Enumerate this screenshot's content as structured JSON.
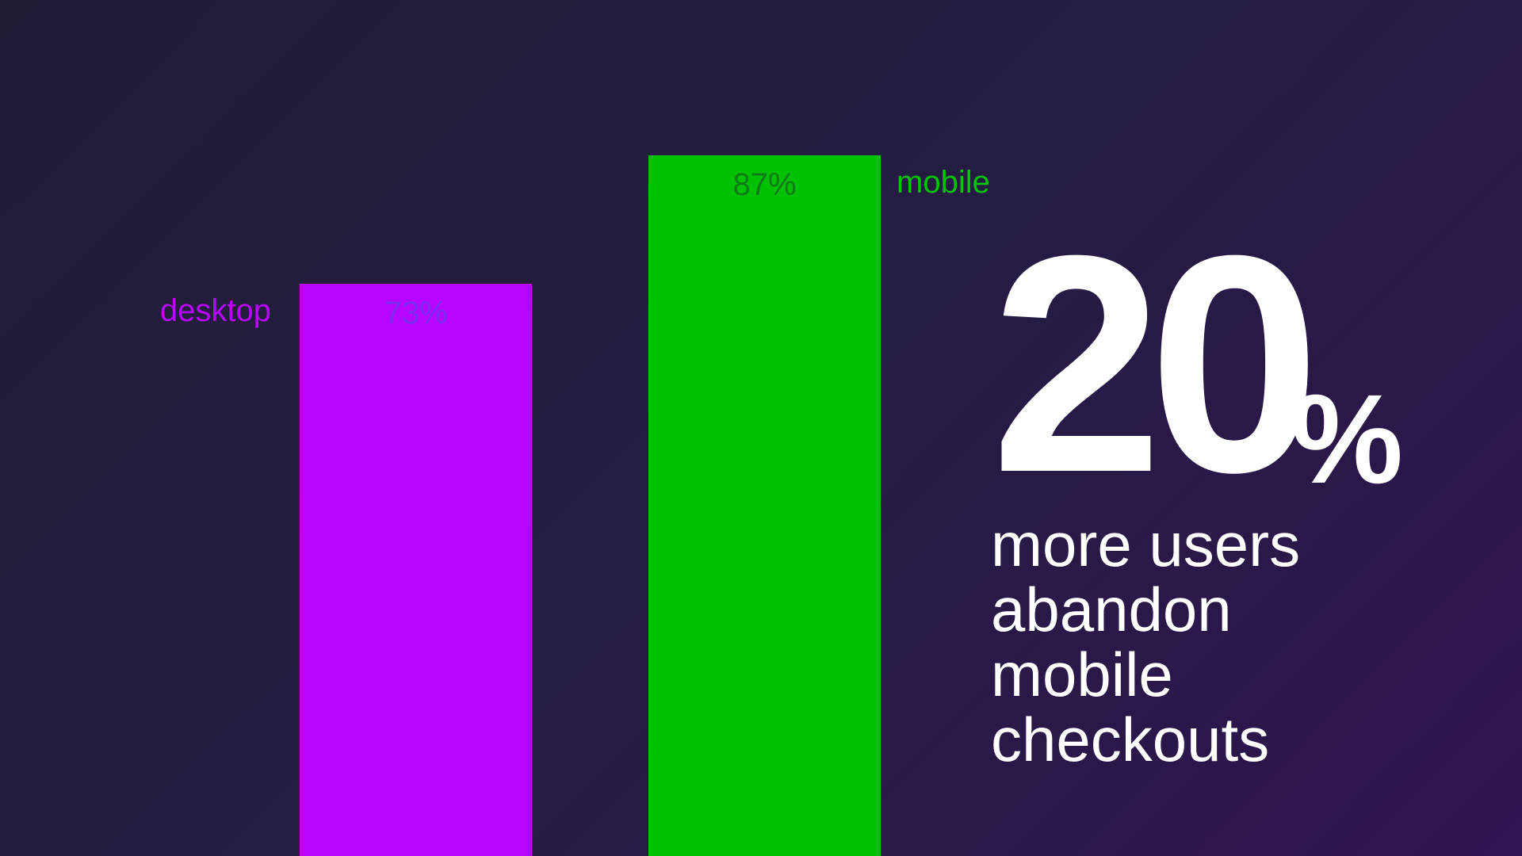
{
  "chart_data": {
    "type": "bar",
    "categories": [
      "desktop",
      "mobile"
    ],
    "values": [
      73,
      87
    ],
    "value_labels": [
      "73%",
      "87%"
    ],
    "colors": [
      "#b705ff",
      "#00c203"
    ],
    "value_label_colors": [
      "#7a2cf0",
      "#0f7a16"
    ],
    "ylim": [
      0,
      100
    ],
    "grid": false
  },
  "headline": {
    "number": "20",
    "unit": "%",
    "caption_lines": [
      "more users",
      "abandon",
      "mobile",
      "checkouts"
    ]
  }
}
